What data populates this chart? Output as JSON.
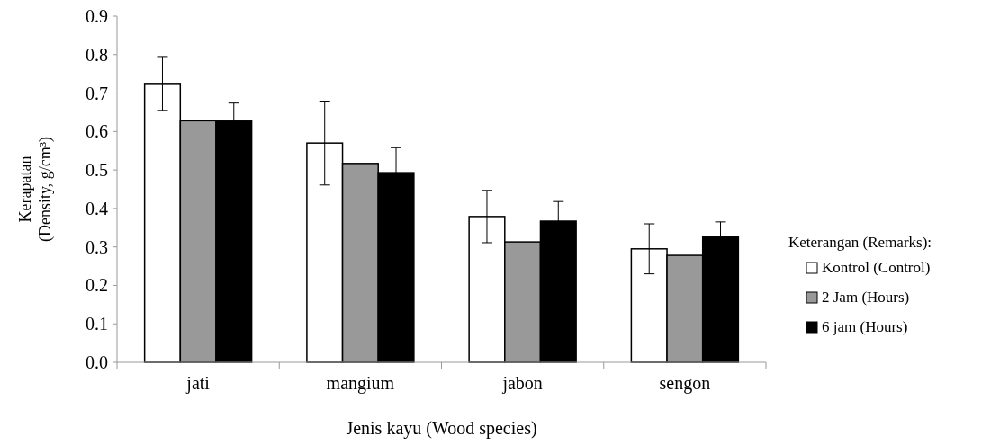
{
  "chart_data": {
    "type": "bar",
    "xlabel": "Jenis kayu (Wood species)",
    "ylabel": "Kerapatan (Density, g/cm³)",
    "legend_title": "Keterangan (Remarks):",
    "categories": [
      "jati",
      "mangium",
      "jabon",
      "sengon"
    ],
    "series": [
      {
        "name": "Kontrol (Control)",
        "color": "#ffffff",
        "values": [
          0.725,
          0.57,
          0.379,
          0.295
        ],
        "errors": [
          0.07,
          0.109,
          0.068,
          0.065
        ]
      },
      {
        "name": "2 Jam (Hours)",
        "color": "#999999",
        "values": [
          0.628,
          0.517,
          0.313,
          0.278
        ]
      },
      {
        "name": "6 jam (Hours)",
        "color": "#000000",
        "values": [
          0.627,
          0.493,
          0.367,
          0.327
        ],
        "errors": [
          0.047,
          0.065,
          0.051,
          0.038
        ]
      }
    ],
    "ylim": [
      0,
      0.9
    ],
    "yticks": [
      "0.0",
      0.1,
      0.2,
      0.3,
      0.4,
      0.5,
      0.6,
      0.7,
      0.8,
      0.9
    ],
    "grid": false,
    "legend": "right"
  }
}
